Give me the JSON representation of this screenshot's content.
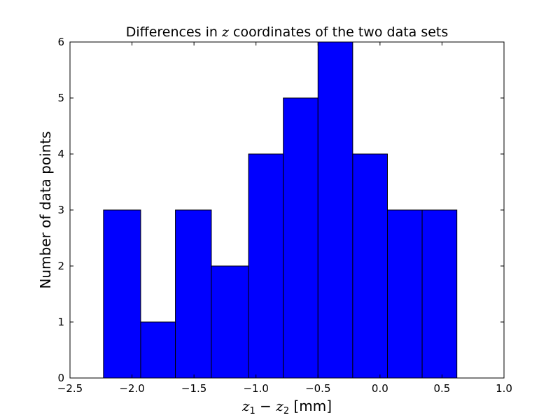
{
  "chart_data": {
    "type": "bar",
    "subtype": "histogram",
    "title": {
      "prefix": "Differences in ",
      "math": "z",
      "suffix": " coordinates of the two data sets"
    },
    "xlabel": {
      "math_a": "z",
      "sub_a": "1",
      "minus": " − ",
      "math_b": "z",
      "sub_b": "2",
      "unit": " [mm]"
    },
    "ylabel": "Number of data points",
    "xlim": [
      -2.5,
      1.0
    ],
    "ylim": [
      0,
      6
    ],
    "x_ticks": [
      -2.5,
      -2.0,
      -1.5,
      -1.0,
      -0.5,
      0.0,
      0.5,
      1.0
    ],
    "x_tick_labels": [
      "−2.5",
      "−2.0",
      "−1.5",
      "−1.0",
      "−0.5",
      "0.0",
      "0.5",
      "1.0"
    ],
    "y_ticks": [
      0,
      1,
      2,
      3,
      4,
      5,
      6
    ],
    "y_tick_labels": [
      "0",
      "1",
      "2",
      "3",
      "4",
      "5",
      "6"
    ],
    "bin_edges": [
      -2.23,
      -1.93,
      -1.65,
      -1.36,
      -1.06,
      -0.78,
      -0.5,
      -0.22,
      0.06,
      0.34,
      0.62
    ],
    "counts": [
      3,
      1,
      3,
      2,
      4,
      5,
      6,
      4,
      3,
      3
    ],
    "bar_color": "#0000ff",
    "edge_color": "#000000",
    "grid": false
  }
}
